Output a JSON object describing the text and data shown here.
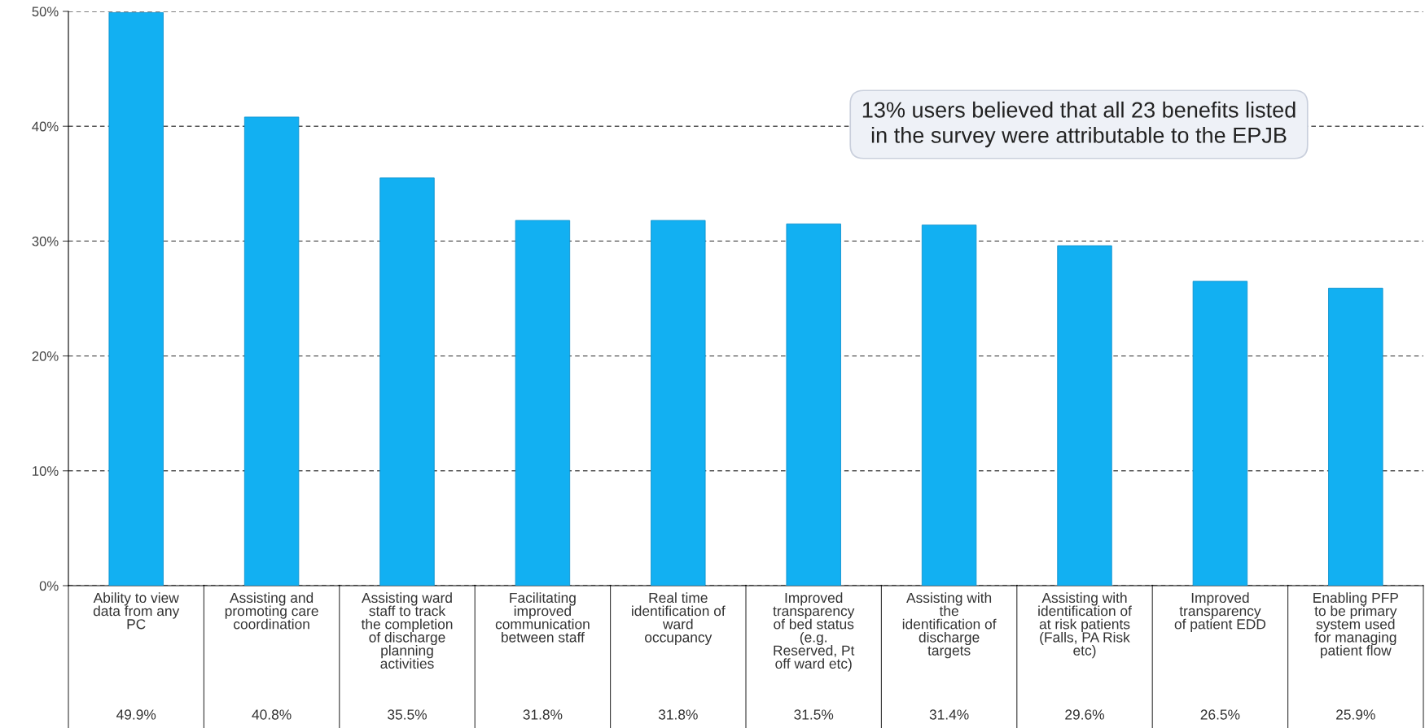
{
  "chart_data": {
    "type": "bar",
    "categories": [
      "Ability to view\ndata from any\nPC",
      "Assisting and\npromoting care\ncoordination",
      "Assisting ward\nstaff to track\nthe completion\nof discharge\nplanning\nactivities",
      "Facilitating\nimproved\ncommunication\nbetween staff",
      "Real time\nidentification of\nward\noccupancy",
      "Improved\ntransparency\nof bed status\n(e.g.\nReserved, Pt\noff ward etc)",
      "Assisting with\nthe\nidentification of\ndischarge\ntargets",
      "Assisting with\nidentification of\nat risk patients\n(Falls, PA Risk\netc)",
      "Improved\ntransparency\nof patient EDD",
      "Enabling PFP\nto be primary\nsystem used\nfor managing\npatient flow"
    ],
    "values": [
      49.9,
      40.8,
      35.5,
      31.8,
      31.8,
      31.5,
      31.4,
      29.6,
      26.5,
      25.9
    ],
    "value_labels": [
      "49.9%",
      "40.8%",
      "35.5%",
      "31.8%",
      "31.8%",
      "31.5%",
      "31.4%",
      "29.6%",
      "26.5%",
      "25.9%"
    ],
    "color": "#12b0f2",
    "ylim": [
      0,
      50
    ],
    "yticks": [
      {
        "value": 0,
        "label": "0%"
      },
      {
        "value": 10,
        "label": "10%"
      },
      {
        "value": 20,
        "label": "20%"
      },
      {
        "value": 30,
        "label": "30%"
      },
      {
        "value": 40,
        "label": "40%"
      },
      {
        "value": 50,
        "label": "50%"
      }
    ],
    "grid": "y",
    "annotations": [
      "13% users believed that all 23 benefits listed\nin the survey were attributable to the EPJB"
    ]
  }
}
